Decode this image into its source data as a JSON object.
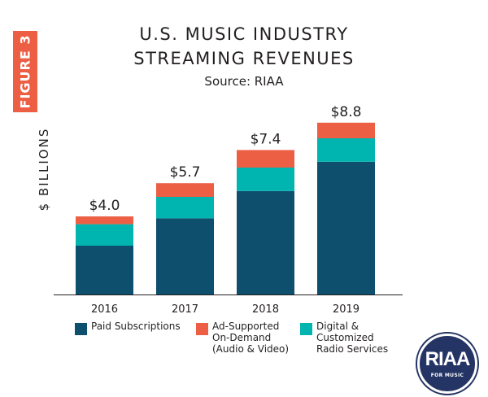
{
  "figure_tab": "FIGURE 3",
  "chart_data": {
    "type": "bar",
    "stacked": true,
    "title": "U.S. MUSIC INDUSTRY STREAMING REVENUES",
    "title_lines": [
      "U.S. MUSIC INDUSTRY",
      "STREAMING REVENUES"
    ],
    "subtitle": "Source: RIAA",
    "ylabel": "$ BILLIONS",
    "xlabel": "",
    "categories": [
      "2016",
      "2017",
      "2018",
      "2019"
    ],
    "totals": [
      4.0,
      5.7,
      7.4,
      8.8
    ],
    "total_labels": [
      "$4.0",
      "$5.7",
      "$7.4",
      "$8.8"
    ],
    "ylim": [
      0,
      10
    ],
    "grid": false,
    "legend_position": "bottom",
    "series": [
      {
        "name": "Paid Subscriptions",
        "values": [
          2.5,
          3.9,
          5.3,
          6.8
        ],
        "color": "#0d4f6c"
      },
      {
        "name": "Digital & Customized Radio Services",
        "values": [
          1.1,
          1.1,
          1.2,
          1.2
        ],
        "color": "#00b5b0"
      },
      {
        "name": "Ad-Supported On-Demand (Audio & Video)",
        "values": [
          0.4,
          0.7,
          0.9,
          0.8
        ],
        "color": "#ec5f45"
      }
    ]
  },
  "legend": [
    {
      "lines": [
        "Paid Subscriptions"
      ],
      "color": "#0d4f6c"
    },
    {
      "lines": [
        "Ad-Supported",
        "On-Demand",
        "(Audio & Video)"
      ],
      "color": "#ec5f45"
    },
    {
      "lines": [
        "Digital &",
        "Customized",
        "Radio Services"
      ],
      "color": "#00b5b0"
    }
  ],
  "logo": {
    "wordmark": "RIAA",
    "tagline": "FOR MUSIC",
    "color": "#243464"
  }
}
